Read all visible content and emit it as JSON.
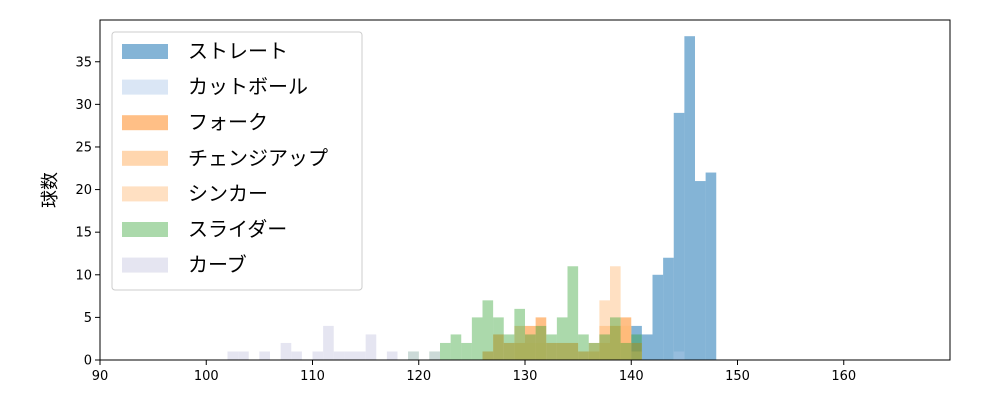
{
  "chart_data": {
    "type": "bar",
    "title": "",
    "xlabel": "",
    "ylabel": "球数",
    "xlim": [
      90,
      170
    ],
    "ylim": [
      0,
      39.9
    ],
    "xticks": [
      90,
      100,
      110,
      120,
      130,
      140,
      150,
      160
    ],
    "yticks": [
      0,
      5,
      10,
      15,
      20,
      25,
      30,
      35
    ],
    "bin_width": 1,
    "grid": false,
    "legend_position": "top-left",
    "series": [
      {
        "name": "ストレート",
        "color": "#1f77b4",
        "alpha": 0.55,
        "bins": [
          [
            140,
            4
          ],
          [
            141,
            3
          ],
          [
            142,
            10
          ],
          [
            143,
            12
          ],
          [
            144,
            29
          ],
          [
            145,
            38
          ],
          [
            146,
            21
          ],
          [
            147,
            22
          ]
        ]
      },
      {
        "name": "カットボール",
        "color": "#aec7e8",
        "alpha": 0.45,
        "bins": [
          [
            144,
            1
          ]
        ]
      },
      {
        "name": "フォーク",
        "color": "#ff7f0e",
        "alpha": 0.5,
        "bins": [
          [
            126,
            1
          ],
          [
            127,
            3
          ],
          [
            128,
            2
          ],
          [
            129,
            2
          ],
          [
            130,
            4
          ],
          [
            131,
            5
          ],
          [
            132,
            2
          ],
          [
            133,
            2
          ],
          [
            134,
            2
          ],
          [
            135,
            1
          ],
          [
            136,
            1
          ],
          [
            137,
            2
          ],
          [
            138,
            4
          ],
          [
            139,
            5
          ],
          [
            140,
            2
          ]
        ]
      },
      {
        "name": "チェンジアップ",
        "color": "#ffbb78",
        "alpha": 0.6,
        "bins": [
          [
            129,
            4
          ],
          [
            130,
            2
          ],
          [
            131,
            2
          ],
          [
            136,
            2
          ],
          [
            137,
            4
          ],
          [
            138,
            4
          ],
          [
            139,
            4
          ],
          [
            140,
            1
          ]
        ]
      },
      {
        "name": "シンカー",
        "color": "#ffbb78",
        "alpha": 0.45,
        "bins": [
          [
            137,
            7
          ],
          [
            138,
            11
          ],
          [
            139,
            4
          ]
        ]
      },
      {
        "name": "スライダー",
        "color": "#2ca02c",
        "alpha": 0.4,
        "bins": [
          [
            119,
            1
          ],
          [
            121,
            1
          ],
          [
            122,
            2
          ],
          [
            123,
            3
          ],
          [
            124,
            2
          ],
          [
            125,
            5
          ],
          [
            126,
            7
          ],
          [
            127,
            5
          ],
          [
            128,
            3
          ],
          [
            129,
            6
          ],
          [
            130,
            3
          ],
          [
            131,
            4
          ],
          [
            132,
            3
          ],
          [
            133,
            5
          ],
          [
            134,
            11
          ],
          [
            135,
            3
          ],
          [
            136,
            2
          ],
          [
            137,
            3
          ],
          [
            138,
            5
          ],
          [
            139,
            2
          ],
          [
            140,
            3
          ]
        ]
      },
      {
        "name": "カーブ",
        "color": "#dadaeb",
        "alpha": 0.7,
        "bins": [
          [
            102,
            1
          ],
          [
            103,
            1
          ],
          [
            105,
            1
          ],
          [
            107,
            2
          ],
          [
            108,
            1
          ],
          [
            110,
            1
          ],
          [
            111,
            4
          ],
          [
            112,
            1
          ],
          [
            113,
            1
          ],
          [
            114,
            1
          ],
          [
            115,
            3
          ],
          [
            117,
            1
          ],
          [
            119,
            1
          ],
          [
            121,
            1
          ]
        ]
      }
    ]
  }
}
